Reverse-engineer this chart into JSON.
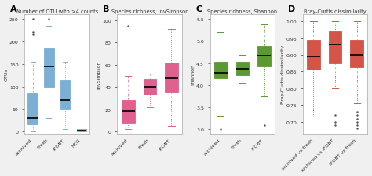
{
  "panel_A": {
    "title": "Number of OTU with >4 counts",
    "ylabel": "OTUs",
    "box_color": "#BDD7EE",
    "border_color": "#7BAFD4",
    "groups": [
      "archived",
      "Fresh",
      "iFOBT",
      "NEG"
    ],
    "boxes": [
      {
        "q1": 15,
        "median": 30,
        "q3": 85,
        "whislo": 0,
        "whishi": 155,
        "fliers_high": [
          215,
          220,
          250
        ],
        "fliers_low": []
      },
      {
        "q1": 100,
        "median": 145,
        "q3": 185,
        "whislo": 30,
        "whishi": 235,
        "fliers_high": [
          250
        ],
        "fliers_low": []
      },
      {
        "q1": 50,
        "median": 70,
        "q3": 115,
        "whislo": 5,
        "whishi": 155,
        "fliers_low": [],
        "fliers_high": []
      },
      {
        "q1": 0,
        "median": 2,
        "q3": 5,
        "whislo": 0,
        "whishi": 8,
        "fliers_low": [],
        "fliers_high": []
      }
    ],
    "ylim": [
      -5,
      260
    ],
    "yticks": [
      0,
      50,
      100,
      150,
      200,
      250
    ]
  },
  "panel_B": {
    "title": "Species richness, InvSimpson",
    "ylabel": "InvSimpson",
    "box_color": "#FF99CC",
    "border_color": "#E06090",
    "groups": [
      "archived",
      "Fresh",
      "iFOBT"
    ],
    "boxes": [
      {
        "q1": 8,
        "median": 18,
        "q3": 28,
        "whislo": 2,
        "whishi": 50,
        "fliers_high": [
          95
        ],
        "fliers_low": []
      },
      {
        "q1": 33,
        "median": 40,
        "q3": 47,
        "whislo": 22,
        "whishi": 52,
        "fliers_high": [],
        "fliers_low": []
      },
      {
        "q1": 35,
        "median": 48,
        "q3": 62,
        "whislo": 5,
        "whishi": 92,
        "fliers_high": [],
        "fliers_low": []
      }
    ],
    "ylim": [
      -2,
      105
    ],
    "yticks": [
      0,
      20,
      40,
      60,
      80,
      100
    ]
  },
  "panel_C": {
    "title": "Species richness, Shannon",
    "ylabel": "shannon",
    "box_color": "#92D050",
    "border_color": "#5B9933",
    "groups": [
      "archived",
      "Fresh",
      "iFOBT"
    ],
    "boxes": [
      {
        "q1": 4.15,
        "median": 4.28,
        "q3": 4.52,
        "whislo": 3.3,
        "whishi": 5.2,
        "fliers_high": [],
        "fliers_low": [
          3.0
        ]
      },
      {
        "q1": 4.22,
        "median": 4.37,
        "q3": 4.53,
        "whislo": 4.05,
        "whishi": 4.68,
        "fliers_high": [],
        "fliers_low": []
      },
      {
        "q1": 4.42,
        "median": 4.67,
        "q3": 4.88,
        "whislo": 3.75,
        "whishi": 5.38,
        "fliers_high": [],
        "fliers_low": [
          3.1
        ]
      }
    ],
    "ylim": [
      2.9,
      5.6
    ],
    "yticks": [
      3.0,
      3.5,
      4.0,
      4.5,
      5.0,
      5.5
    ]
  },
  "panel_D": {
    "title": "Bray-Curtis dissimilarity",
    "ylabel": "Bray-Curtis dissimilarity",
    "box_color": "#F4877A",
    "border_color": "#D45548",
    "groups": [
      "archived vs fresh",
      "archived vs iFOBT",
      "iFOBT vs fresh"
    ],
    "boxes": [
      {
        "q1": 0.855,
        "median": 0.895,
        "q3": 0.945,
        "whislo": 0.715,
        "whishi": 1.0,
        "fliers_high": [],
        "fliers_low": []
      },
      {
        "q1": 0.875,
        "median": 0.93,
        "q3": 0.97,
        "whislo": 0.8,
        "whishi": 1.0,
        "fliers_high": [],
        "fliers_low": [
          0.72,
          0.7,
          0.69
        ]
      },
      {
        "q1": 0.862,
        "median": 0.9,
        "q3": 0.945,
        "whislo": 0.755,
        "whishi": 1.0,
        "fliers_high": [],
        "fliers_low": [
          0.68,
          0.69,
          0.7,
          0.71,
          0.72,
          0.73
        ]
      }
    ],
    "ylim": [
      0.665,
      1.02
    ],
    "yticks": [
      0.7,
      0.75,
      0.8,
      0.85,
      0.9,
      0.95,
      1.0
    ]
  },
  "panel_labels": [
    "A",
    "B",
    "C",
    "D"
  ],
  "bg_color": "#ffffff",
  "fig_bg_color": "#f0f0f0",
  "linewidth": 0.7,
  "flier_size": 1.5,
  "border_lw": 0.6
}
